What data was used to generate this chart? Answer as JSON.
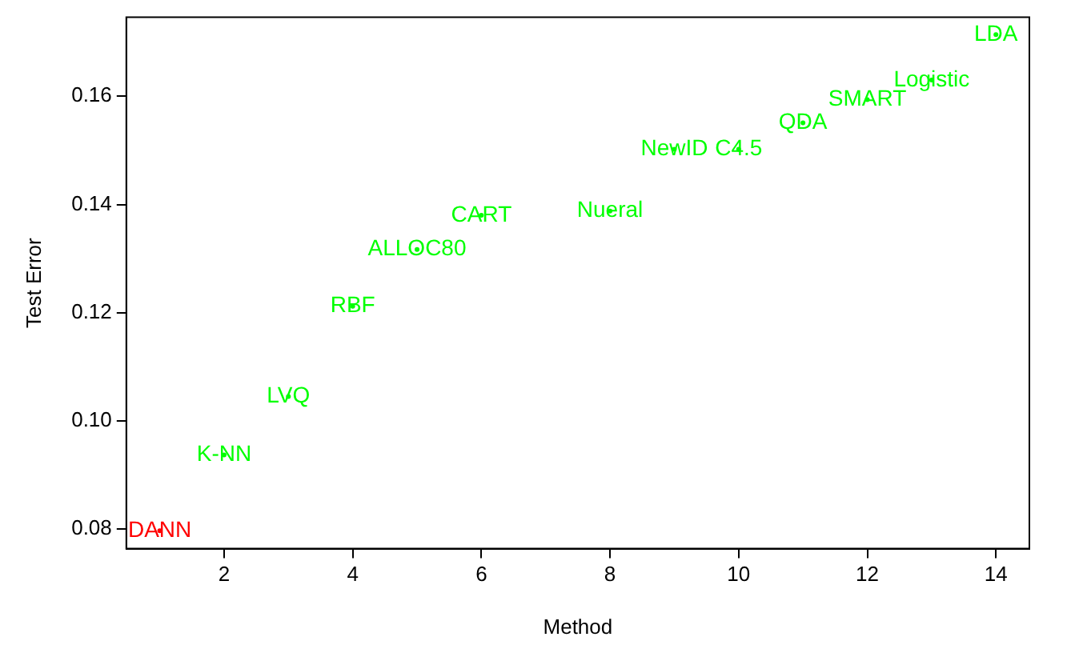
{
  "chart_data": {
    "type": "scatter",
    "xlabel": "Method",
    "ylabel": "Test Error",
    "xlim": [
      0.48,
      14.52
    ],
    "ylim": [
      0.0764,
      0.1746
    ],
    "xticks": [
      2,
      4,
      6,
      8,
      10,
      12,
      14
    ],
    "yticks": [
      {
        "value": 0.08,
        "label": "0.08"
      },
      {
        "value": 0.1,
        "label": "0.10"
      },
      {
        "value": 0.12,
        "label": "0.12"
      },
      {
        "value": 0.14,
        "label": "0.14"
      },
      {
        "value": 0.16,
        "label": "0.16"
      }
    ],
    "grid": false,
    "legend": false,
    "series": [
      {
        "name": "DANN",
        "color": "#ff0000",
        "x": [
          1
        ],
        "values": [
          0.0797
        ]
      },
      {
        "name": "K-NN",
        "color": "#00ff00",
        "x": [
          2
        ],
        "values": [
          0.0937
        ]
      },
      {
        "name": "LVQ",
        "color": "#00ff00",
        "x": [
          3
        ],
        "values": [
          0.1045
        ]
      },
      {
        "name": "RBF",
        "color": "#00ff00",
        "x": [
          4
        ],
        "values": [
          0.1212
        ]
      },
      {
        "name": "ALLOC80",
        "color": "#00ff00",
        "x": [
          5
        ],
        "values": [
          0.1317
        ]
      },
      {
        "name": "CART",
        "color": "#00ff00",
        "x": [
          6
        ],
        "values": [
          0.138
        ]
      },
      {
        "name": "Nueral",
        "color": "#00ff00",
        "x": [
          8
        ],
        "values": [
          0.1388
        ]
      },
      {
        "name": "NewID",
        "color": "#00ff00",
        "x": [
          9
        ],
        "values": [
          0.1502
        ]
      },
      {
        "name": "C4.5",
        "color": "#00ff00",
        "x": [
          10
        ],
        "values": [
          0.1502
        ]
      },
      {
        "name": "QDA",
        "color": "#00ff00",
        "x": [
          11
        ],
        "values": [
          0.1551
        ]
      },
      {
        "name": "SMART",
        "color": "#00ff00",
        "x": [
          12
        ],
        "values": [
          0.1594
        ]
      },
      {
        "name": "Logistic",
        "color": "#00ff00",
        "x": [
          13
        ],
        "values": [
          0.163
        ]
      },
      {
        "name": "LDA",
        "color": "#00ff00",
        "x": [
          14
        ],
        "values": [
          0.1714
        ]
      }
    ]
  }
}
